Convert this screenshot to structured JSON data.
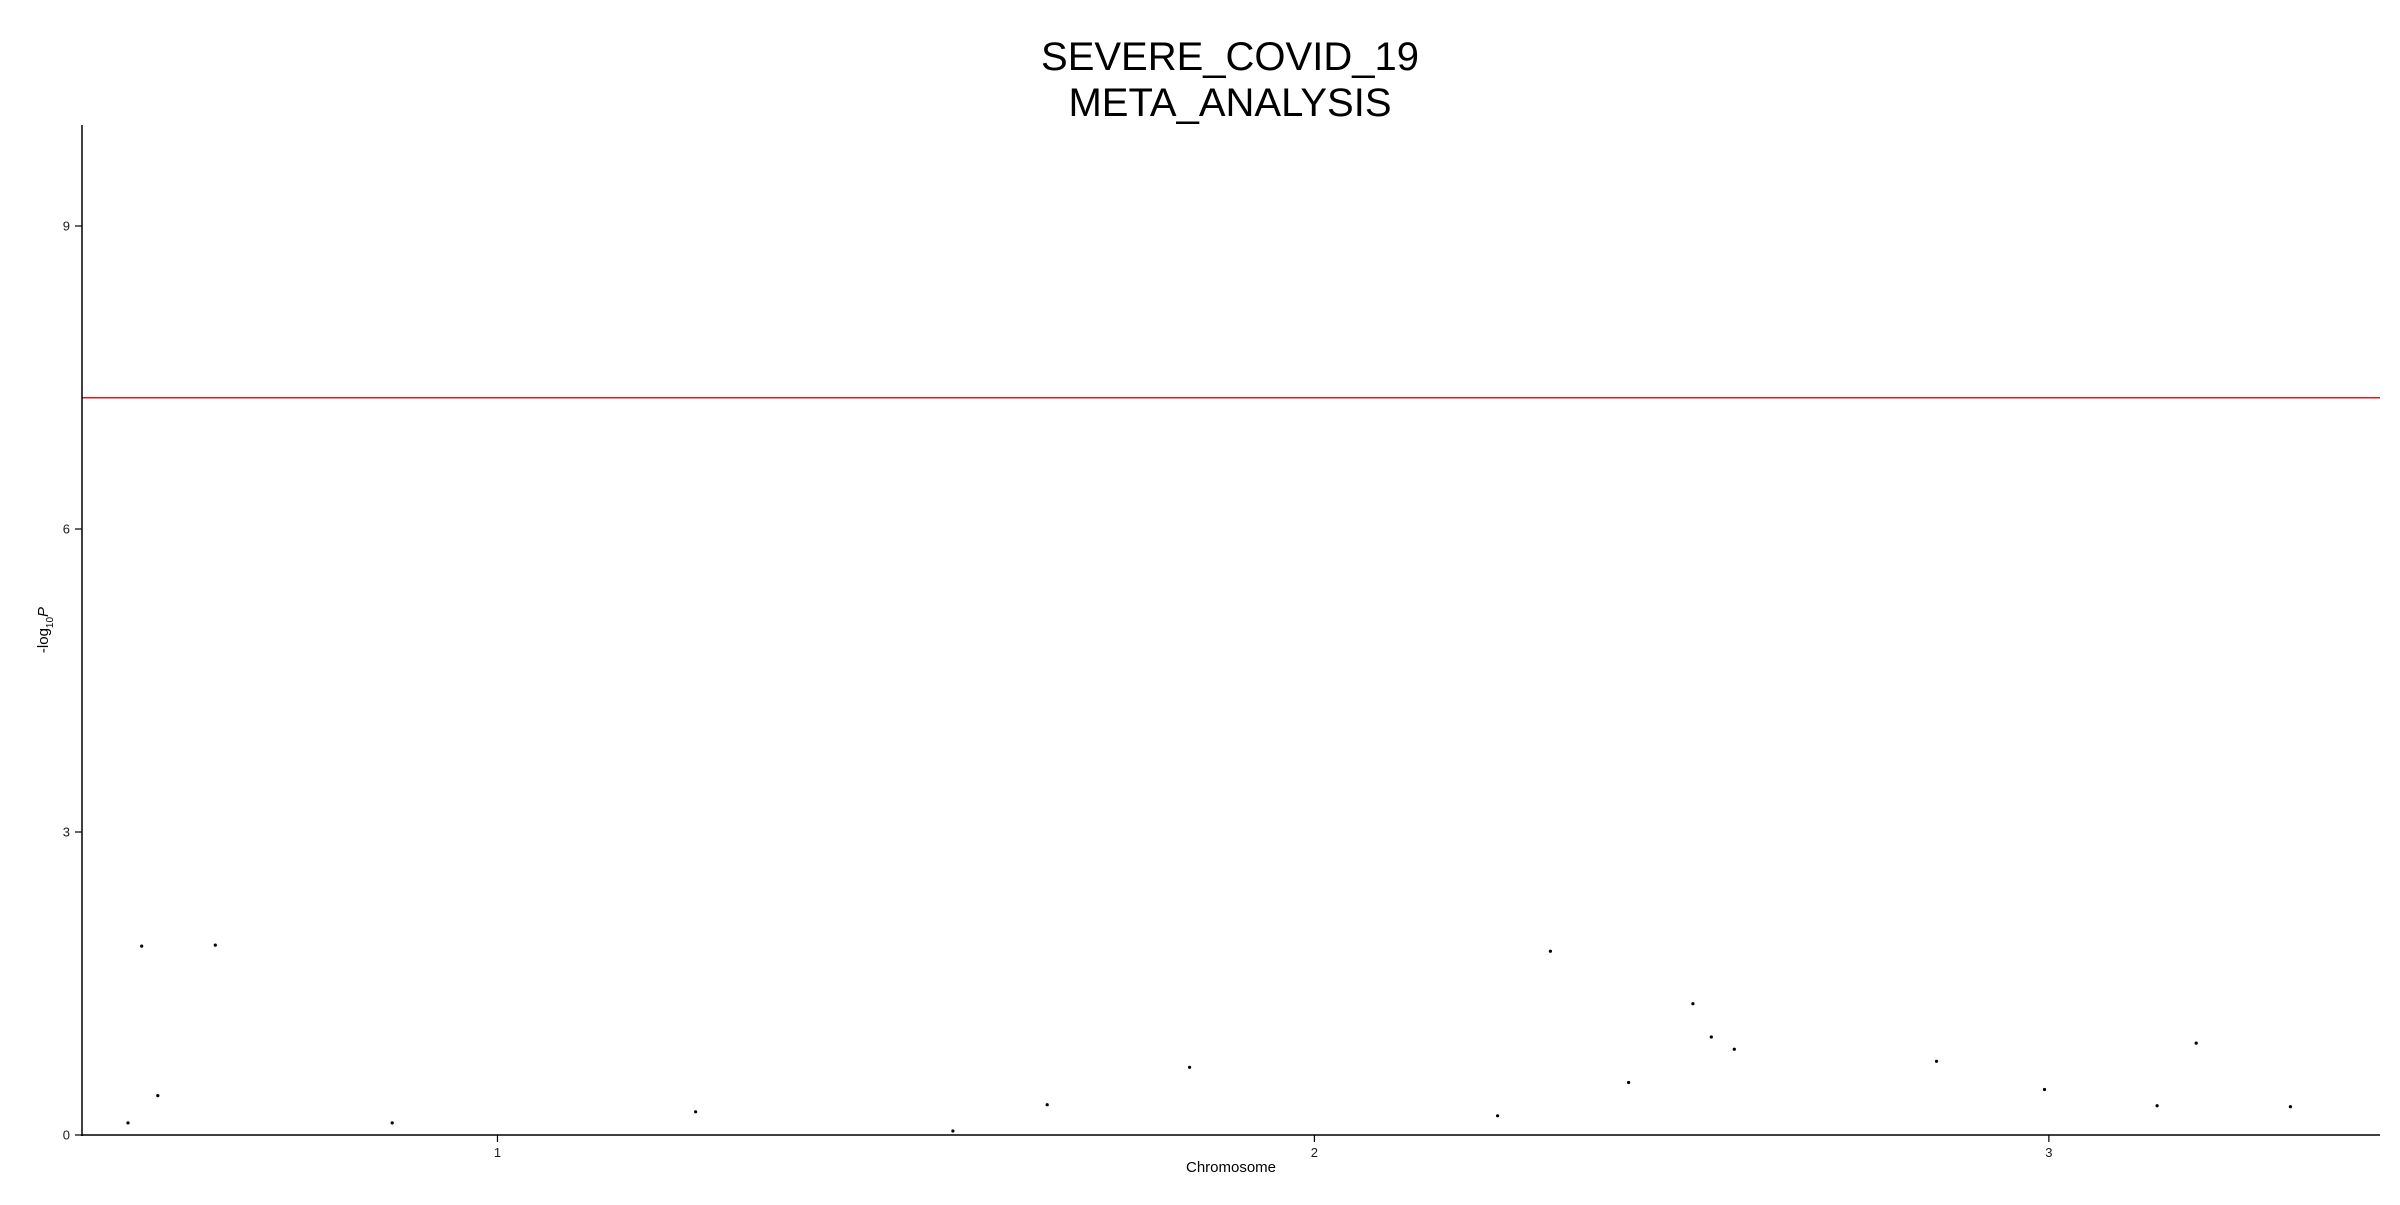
{
  "chart_data": {
    "type": "scatter",
    "title_lines": [
      "SEVERE_COVID_19",
      "META_ANALYSIS"
    ],
    "xlabel": "Chromosome",
    "ylabel_prefix": "-log",
    "ylabel_subscript": "10",
    "ylabel_variable": "P",
    "x_ticks": [
      {
        "label": "1",
        "value": 0.1808
      },
      {
        "label": "2",
        "value": 0.5363
      },
      {
        "label": "3",
        "value": 0.8559
      }
    ],
    "xlim": [
      0,
      1
    ],
    "ylim": [
      0,
      10
    ],
    "y_ticks": [
      0,
      3,
      6,
      9
    ],
    "threshold": 7.3,
    "colors": {
      "points": "#000000",
      "threshold": "#e31a1c",
      "axis": "#000000"
    },
    "grid": false,
    "legend": "none",
    "points": [
      {
        "x": 0.02,
        "y": 0.12
      },
      {
        "x": 0.026,
        "y": 1.87
      },
      {
        "x": 0.033,
        "y": 0.39
      },
      {
        "x": 0.058,
        "y": 1.88
      },
      {
        "x": 0.135,
        "y": 0.12
      },
      {
        "x": 0.267,
        "y": 0.23
      },
      {
        "x": 0.379,
        "y": 0.04
      },
      {
        "x": 0.42,
        "y": 0.3
      },
      {
        "x": 0.482,
        "y": 0.67
      },
      {
        "x": 0.616,
        "y": 0.19
      },
      {
        "x": 0.639,
        "y": 1.82
      },
      {
        "x": 0.673,
        "y": 0.52
      },
      {
        "x": 0.701,
        "y": 1.3
      },
      {
        "x": 0.709,
        "y": 0.97
      },
      {
        "x": 0.719,
        "y": 0.85
      },
      {
        "x": 0.807,
        "y": 0.73
      },
      {
        "x": 0.854,
        "y": 0.45
      },
      {
        "x": 0.903,
        "y": 0.29
      },
      {
        "x": 0.92,
        "y": 0.91
      },
      {
        "x": 0.961,
        "y": 0.28
      }
    ]
  }
}
